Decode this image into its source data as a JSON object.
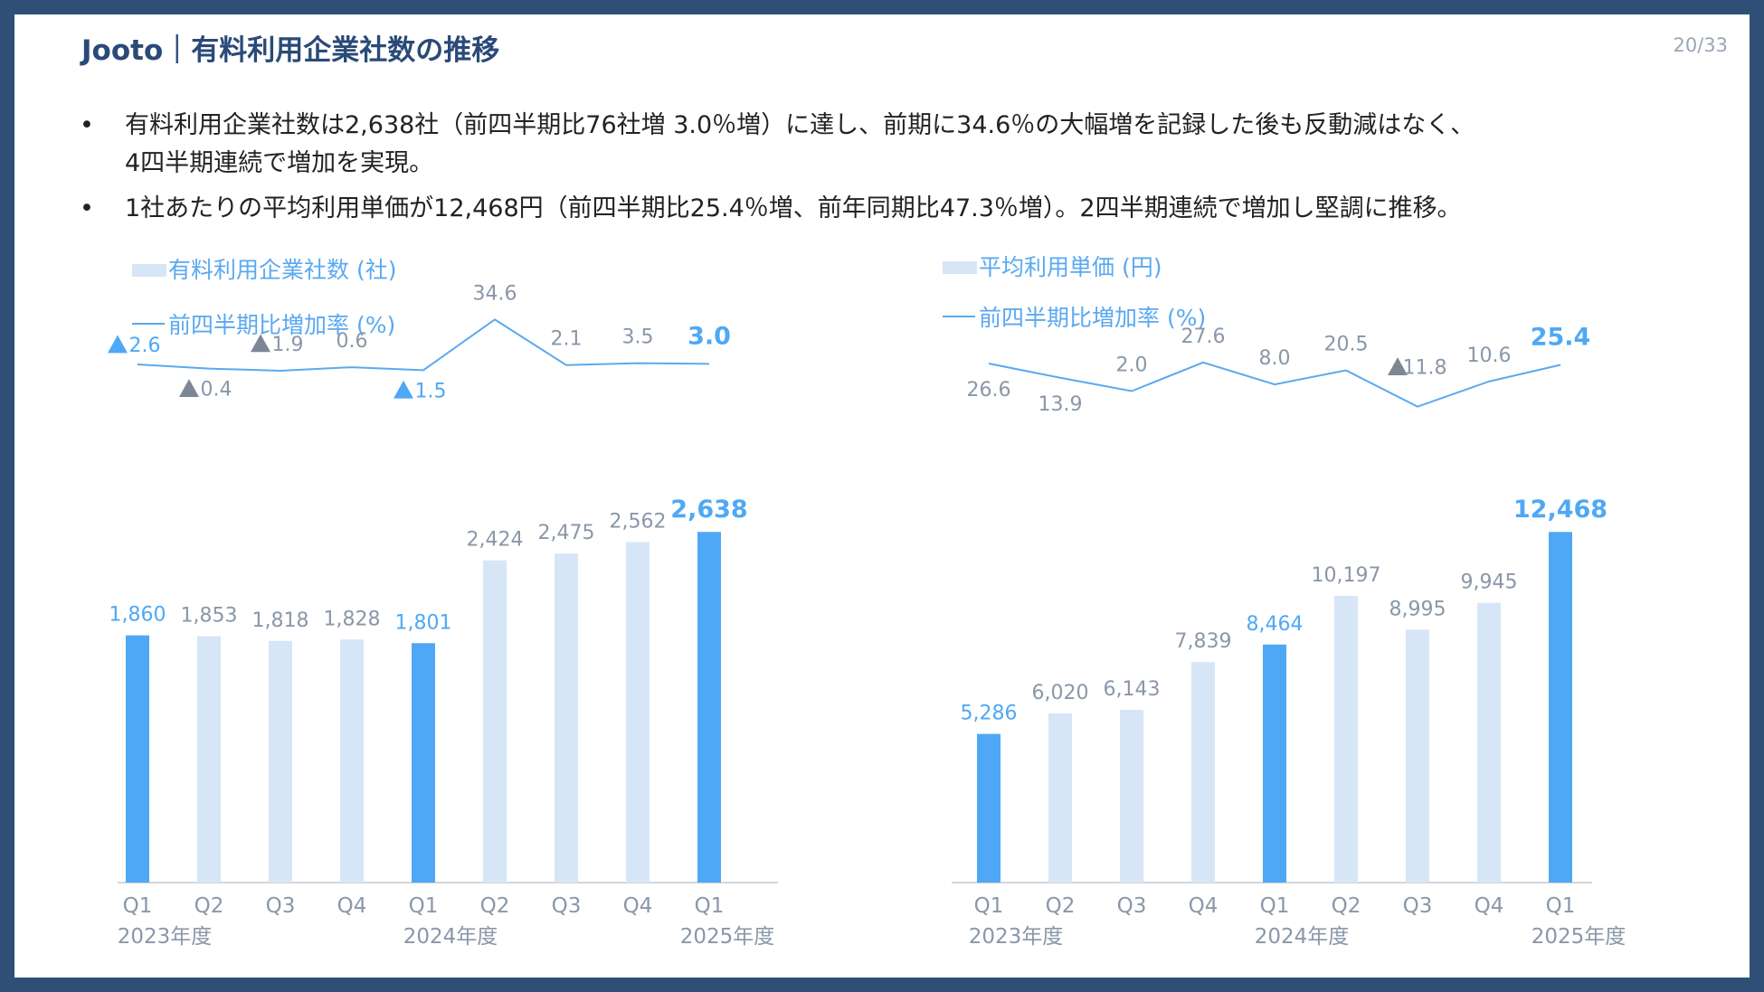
{
  "header": {
    "title": "Jooto｜有料利用企業社数の推移",
    "page_number": "20/33"
  },
  "bullets": [
    {
      "line1": "有料利用企業社数は2,638社（前四半期比76社増 3.0％増）に達し、前期に34.6％の大幅増を記録した後も反動減はなく、",
      "line2": "4四半期連続で増加を実現。"
    },
    {
      "line1": "1社あたりの平均利用単価が12,468円（前四半期比25.4％増、前年同期比47.3％増）。2四半期連続で増加し堅調に推移。",
      "line2": ""
    }
  ],
  "colors": {
    "bar_light": "#d6e6f6",
    "bar_strong": "#4fa8f5",
    "line": "#5aa9f0",
    "label_gray": "#8a97a8",
    "label_blue": "#4fa8f5",
    "tri_blue": "#4fa8f5",
    "tri_gray": "#7b8794",
    "axis": "#c5c9ce",
    "legend_text": "#5aa9f0"
  },
  "chart_data": [
    {
      "type": "bar+line",
      "categories": [
        "Q1",
        "Q2",
        "Q3",
        "Q4",
        "Q1",
        "Q2",
        "Q3",
        "Q4",
        "Q1"
      ],
      "year_labels": [
        {
          "index": 0,
          "label": "2023年度"
        },
        {
          "index": 4,
          "label": "2024年度"
        },
        {
          "index": 8,
          "label": "2025年度"
        }
      ],
      "series": [
        {
          "name": "有料利用企業社数 (社)",
          "type": "bar",
          "values": [
            1860,
            1853,
            1818,
            1828,
            1801,
            2424,
            2475,
            2562,
            2638
          ],
          "labels": [
            "1,860",
            "1,853",
            "1,818",
            "1,828",
            "1,801",
            "2,424",
            "2,475",
            "2,562",
            "2,638"
          ],
          "highlight": [
            0,
            4,
            8
          ]
        },
        {
          "name": "前四半期比増加率 (%)",
          "type": "line",
          "values": [
            2.6,
            -0.4,
            -1.9,
            0.6,
            -1.5,
            34.6,
            2.1,
            3.5,
            3.0
          ],
          "labels": [
            "2.6",
            "0.4",
            "1.9",
            "0.6",
            "1.5",
            "34.6",
            "2.1",
            "3.5",
            "3.0"
          ],
          "markers": [
            "up-blue",
            "down-gray",
            "down-gray",
            "",
            "down-blue",
            "",
            "",
            "",
            ""
          ]
        }
      ]
    },
    {
      "type": "bar+line",
      "categories": [
        "Q1",
        "Q2",
        "Q3",
        "Q4",
        "Q1",
        "Q2",
        "Q3",
        "Q4",
        "Q1"
      ],
      "year_labels": [
        {
          "index": 0,
          "label": "2023年度"
        },
        {
          "index": 4,
          "label": "2024年度"
        },
        {
          "index": 8,
          "label": "2025年度"
        }
      ],
      "series": [
        {
          "name": "平均利用単価 (円)",
          "type": "bar",
          "values": [
            5286,
            6020,
            6143,
            7839,
            8464,
            10197,
            8995,
            9945,
            12468
          ],
          "labels": [
            "5,286",
            "6,020",
            "6,143",
            "7,839",
            "8,464",
            "10,197",
            "8,995",
            "9,945",
            "12,468"
          ],
          "highlight": [
            0,
            4,
            8
          ]
        },
        {
          "name": "前四半期比増加率 (%)",
          "type": "line",
          "values": [
            26.6,
            13.9,
            2.0,
            27.6,
            8.0,
            20.5,
            -11.8,
            10.6,
            25.4
          ],
          "labels": [
            "26.6",
            "13.9",
            "2.0",
            "27.6",
            "8.0",
            "20.5",
            "11.8",
            "10.6",
            "25.4"
          ],
          "markers": [
            "",
            "",
            "",
            "",
            "",
            "",
            "down-gray",
            "",
            ""
          ]
        }
      ]
    }
  ]
}
